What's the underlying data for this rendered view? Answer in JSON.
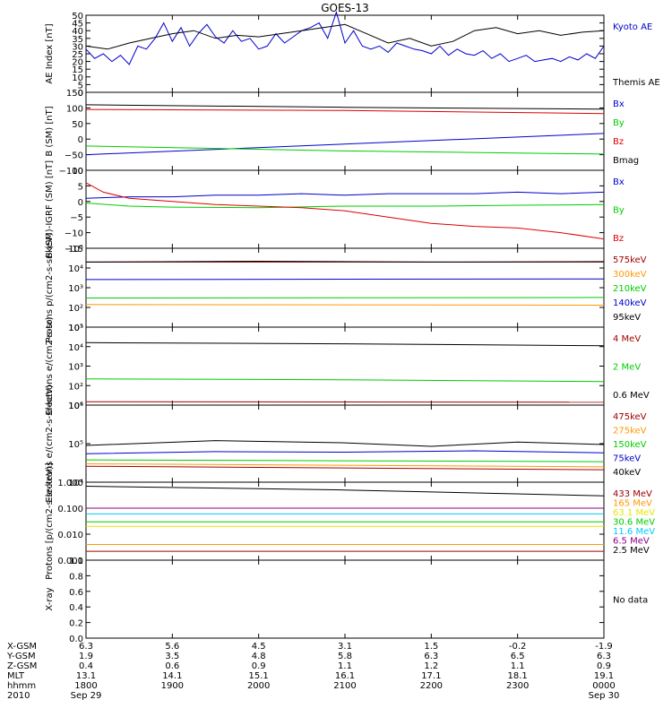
{
  "title": "GOES-13",
  "colors": {
    "black": "#000000",
    "blue": "#0000cc",
    "red": "#dd0000",
    "green": "#00cc00",
    "orange": "#ff9900",
    "darkred": "#a00000",
    "cyan": "#00c8ff",
    "yellow": "#e6e600",
    "purple": "#880088"
  },
  "chart_data": [
    {
      "type": "line",
      "name": "ae",
      "ylabel": "AE Index [nT]",
      "yscale": "linear",
      "ylim": [
        0,
        50
      ],
      "yticks": [
        0,
        5,
        10,
        15,
        20,
        25,
        30,
        35,
        40,
        45,
        50
      ],
      "ytick_labels": [
        "0",
        "5",
        "10",
        "15",
        "20",
        "25",
        "30",
        "35",
        "40",
        "45",
        "50"
      ],
      "series": [
        {
          "name": "Kyoto AE",
          "color": "blue",
          "x": [
            0,
            0.1,
            0.2,
            0.3,
            0.4,
            0.5,
            0.6,
            0.7,
            0.8,
            0.9,
            1,
            1.1,
            1.2,
            1.3,
            1.4,
            1.5,
            1.6,
            1.7,
            1.8,
            1.9,
            2,
            2.1,
            2.2,
            2.3,
            2.4,
            2.5,
            2.6,
            2.7,
            2.8,
            2.9,
            3,
            3.1,
            3.2,
            3.3,
            3.4,
            3.5,
            3.6,
            3.7,
            3.8,
            3.9,
            4,
            4.1,
            4.2,
            4.3,
            4.4,
            4.5,
            4.6,
            4.7,
            4.8,
            4.9,
            5,
            5.1,
            5.2,
            5.3,
            5.4,
            5.5,
            5.6,
            5.7,
            5.8,
            5.9,
            6
          ],
          "y": [
            28,
            22,
            25,
            20,
            24,
            18,
            30,
            28,
            35,
            45,
            33,
            42,
            30,
            38,
            44,
            36,
            32,
            40,
            33,
            35,
            28,
            30,
            38,
            32,
            36,
            40,
            42,
            45,
            35,
            52,
            32,
            40,
            30,
            28,
            30,
            26,
            32,
            30,
            28,
            27,
            25,
            30,
            24,
            28,
            25,
            24,
            27,
            22,
            25,
            20,
            22,
            24,
            20,
            21,
            22,
            20,
            23,
            21,
            25,
            22,
            30
          ]
        },
        {
          "name": "Themis AE",
          "color": "black",
          "x": [
            0,
            0.25,
            0.5,
            0.75,
            1,
            1.25,
            1.5,
            1.75,
            2,
            2.25,
            2.5,
            2.75,
            3,
            3.25,
            3.5,
            3.75,
            4,
            4.25,
            4.5,
            4.75,
            5,
            5.25,
            5.5,
            5.75,
            6
          ],
          "y": [
            30,
            28,
            32,
            35,
            38,
            40,
            35,
            37,
            36,
            38,
            40,
            42,
            44,
            38,
            32,
            35,
            30,
            33,
            40,
            42,
            38,
            40,
            37,
            39,
            40
          ]
        }
      ]
    },
    {
      "type": "line",
      "name": "bsm",
      "ylabel": "B (SM) [nT]",
      "yscale": "linear",
      "ylim": [
        -100,
        150
      ],
      "yticks": [
        -100,
        -50,
        0,
        50,
        100,
        150
      ],
      "ytick_labels": [
        "−100",
        "−50",
        "0",
        "50",
        "100",
        "150"
      ],
      "series": [
        {
          "name": "Bx",
          "color": "blue",
          "x": [
            0,
            6
          ],
          "y": [
            -50,
            18
          ]
        },
        {
          "name": "By",
          "color": "green",
          "x": [
            0,
            3,
            6
          ],
          "y": [
            -22,
            -38,
            -48
          ]
        },
        {
          "name": "Bz",
          "color": "red",
          "x": [
            0,
            3,
            6
          ],
          "y": [
            95,
            92,
            82
          ]
        },
        {
          "name": "Bmag",
          "color": "black",
          "x": [
            0,
            3,
            6
          ],
          "y": [
            110,
            102,
            96
          ]
        }
      ]
    },
    {
      "type": "line",
      "name": "bigrf",
      "ylabel": "B (SM)-IGRF (SM) [nT]",
      "yscale": "linear",
      "ylim": [
        -15,
        10
      ],
      "yticks": [
        -15,
        -10,
        -5,
        0,
        5,
        10
      ],
      "ytick_labels": [
        "−15",
        "−10",
        "−5",
        "0",
        "5",
        "10"
      ],
      "series": [
        {
          "name": "Bx",
          "color": "blue",
          "x": [
            0,
            0.5,
            1,
            1.5,
            2,
            2.5,
            3,
            3.5,
            4,
            4.5,
            5,
            5.5,
            6
          ],
          "y": [
            1,
            1.5,
            1.5,
            2,
            2,
            2.5,
            2,
            2.5,
            2.5,
            2.5,
            3,
            2.5,
            3
          ]
        },
        {
          "name": "By",
          "color": "green",
          "x": [
            0,
            0.5,
            1,
            2,
            3,
            4,
            5,
            6
          ],
          "y": [
            -0.5,
            -1.5,
            -1.8,
            -2,
            -1.5,
            -1.5,
            -1.2,
            -1
          ]
        },
        {
          "name": "Bz",
          "color": "red",
          "x": [
            0,
            0.2,
            0.5,
            1,
            1.5,
            2,
            2.5,
            3,
            3.5,
            4,
            4.5,
            5,
            5.5,
            6
          ],
          "y": [
            6,
            3,
            1,
            0,
            -1,
            -1.5,
            -2,
            -3,
            -5,
            -7,
            -8,
            -8.5,
            -10,
            -12
          ]
        }
      ]
    },
    {
      "type": "line",
      "name": "protons1",
      "ylabel": "Protons p/(cm2-s-sr-keV)",
      "yscale": "log",
      "ylim": [
        10,
        100000
      ],
      "yticks": [
        10,
        100,
        1000,
        10000,
        100000
      ],
      "ytick_labels": [
        "10¹",
        "10²",
        "10³",
        "10⁴",
        "10⁵"
      ],
      "series": [
        {
          "name": "575keV",
          "color": "darkred",
          "x": [
            0,
            6
          ],
          "y": [
            20000,
            20000
          ]
        },
        {
          "name": "300keV",
          "color": "orange",
          "x": [
            0,
            6
          ],
          "y": [
            140,
            130
          ]
        },
        {
          "name": "210keV",
          "color": "green",
          "x": [
            0,
            6
          ],
          "y": [
            300,
            320
          ]
        },
        {
          "name": "140keV",
          "color": "blue",
          "x": [
            0,
            6
          ],
          "y": [
            2600,
            2800
          ]
        },
        {
          "name": "95keV",
          "color": "black",
          "x": [
            0,
            2,
            4,
            6
          ],
          "y": [
            20000,
            22000,
            20000,
            21000
          ]
        }
      ]
    },
    {
      "type": "line",
      "name": "electrons1",
      "ylabel": "Electrons e/(cm2-s-sr)",
      "yscale": "log",
      "ylim": [
        10,
        100000
      ],
      "yticks": [
        10,
        100,
        1000,
        10000,
        100000
      ],
      "ytick_labels": [
        "10¹",
        "10²",
        "10³",
        "10⁴",
        "10⁵"
      ],
      "series": [
        {
          "name": "4 MeV",
          "color": "darkred",
          "x": [
            0,
            6
          ],
          "y": [
            15,
            14
          ]
        },
        {
          "name": "2 MeV",
          "color": "green",
          "x": [
            0,
            3,
            6
          ],
          "y": [
            220,
            200,
            160
          ]
        },
        {
          "name": "0.6 MeV",
          "color": "black",
          "x": [
            0,
            3,
            6
          ],
          "y": [
            16000,
            14000,
            11000
          ]
        }
      ]
    },
    {
      "type": "line",
      "name": "electrons2",
      "ylabel": "Electrons e/(cm2-s-sr-keV)",
      "yscale": "log",
      "ylim": [
        10000,
        1000000
      ],
      "yticks": [
        10000,
        100000,
        1000000
      ],
      "ytick_labels": [
        "10⁴",
        "10⁵",
        "10⁶"
      ],
      "series": [
        {
          "name": "475keV",
          "color": "darkred",
          "x": [
            0,
            6
          ],
          "y": [
            26000,
            21000
          ]
        },
        {
          "name": "275keV",
          "color": "orange",
          "x": [
            0,
            6
          ],
          "y": [
            30000,
            25000
          ]
        },
        {
          "name": "150keV",
          "color": "green",
          "x": [
            0,
            3,
            6
          ],
          "y": [
            38000,
            36000,
            34000
          ]
        },
        {
          "name": "75keV",
          "color": "blue",
          "x": [
            0,
            1.5,
            3,
            4.5,
            6
          ],
          "y": [
            55000,
            62000,
            60000,
            65000,
            58000
          ]
        },
        {
          "name": "40keV",
          "color": "black",
          "x": [
            0,
            1.5,
            3,
            4,
            5,
            6
          ],
          "y": [
            90000,
            120000,
            105000,
            85000,
            110000,
            95000
          ]
        }
      ]
    },
    {
      "type": "line",
      "name": "protons2",
      "ylabel": "Protons [p/(cm2-s-sr-keV)]",
      "yscale": "log",
      "ylim": [
        0.001,
        1.0
      ],
      "yticks": [
        0.001,
        0.01,
        0.1,
        1.0
      ],
      "ytick_labels": [
        "0.001",
        "0.010",
        "0.100",
        "1.000"
      ],
      "series": [
        {
          "name": "433 MeV",
          "color": "darkred",
          "x": [
            0,
            6
          ],
          "y": [
            0.0022,
            0.0022
          ]
        },
        {
          "name": "165 MeV",
          "color": "orange",
          "x": [
            0,
            6
          ],
          "y": [
            0.004,
            0.004
          ]
        },
        {
          "name": "63.1 MeV",
          "color": "yellow",
          "x": [
            0,
            6
          ],
          "y": [
            0.02,
            0.02
          ]
        },
        {
          "name": "30.6 MeV",
          "color": "green",
          "x": [
            0,
            6
          ],
          "y": [
            0.03,
            0.03
          ]
        },
        {
          "name": "11.6 MeV",
          "color": "cyan",
          "x": [
            0,
            6
          ],
          "y": [
            0.06,
            0.06
          ]
        },
        {
          "name": "6.5 MeV",
          "color": "purple",
          "x": [
            0,
            6
          ],
          "y": [
            0.1,
            0.1
          ]
        },
        {
          "name": "2.5 MeV",
          "color": "black",
          "x": [
            0,
            3,
            6
          ],
          "y": [
            0.7,
            0.5,
            0.3
          ]
        }
      ]
    },
    {
      "type": "line",
      "name": "xray",
      "ylabel": "X-ray",
      "yscale": "linear",
      "ylim": [
        0,
        1.0
      ],
      "yticks": [
        0,
        0.2,
        0.4,
        0.6,
        0.8,
        1.0
      ],
      "ytick_labels": [
        "0.0",
        "0.2",
        "0.4",
        "0.6",
        "0.8",
        "1.0"
      ],
      "series": [],
      "note": "No data"
    }
  ],
  "xaxis": {
    "xlim": [
      0,
      6
    ],
    "ticks": [
      0,
      1,
      2,
      3,
      4,
      5,
      6
    ],
    "rows": [
      {
        "label": "X-GSM",
        "values": [
          "6.3",
          "5.6",
          "4.5",
          "3.1",
          "1.5",
          "-0.2",
          "-1.9"
        ]
      },
      {
        "label": "Y-GSM",
        "values": [
          "1.9",
          "3.5",
          "4.8",
          "5.8",
          "6.3",
          "6.5",
          "6.3"
        ]
      },
      {
        "label": "Z-GSM",
        "values": [
          "0.4",
          "0.6",
          "0.9",
          "1.1",
          "1.2",
          "1.1",
          "0.9"
        ]
      },
      {
        "label": "MLT",
        "values": [
          "13.1",
          "14.1",
          "15.1",
          "16.1",
          "17.1",
          "18.1",
          "19.1"
        ]
      },
      {
        "label": "hhmm",
        "values": [
          "1800",
          "1900",
          "2000",
          "2100",
          "2200",
          "2300",
          "0000"
        ]
      },
      {
        "label": "2010",
        "values": [
          "Sep 29",
          "",
          "",
          "",
          "",
          "",
          "Sep 30"
        ]
      }
    ]
  }
}
